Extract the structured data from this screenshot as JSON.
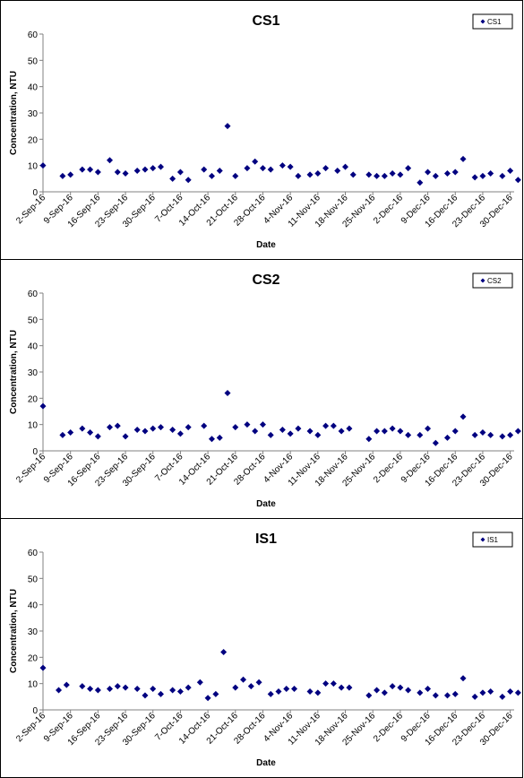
{
  "chart_data": [
    {
      "type": "scatter",
      "title": "CS1",
      "xlabel": "Date",
      "ylabel": "Concentration, NTU",
      "ylim": [
        0,
        60
      ],
      "yticks": [
        "0",
        "10",
        "20",
        "30",
        "40",
        "50",
        "60"
      ],
      "xlim": [
        "2016-09-02",
        "2016-12-31"
      ],
      "xticks": [
        "2-Sep-16",
        "9-Sep-16",
        "16-Sep-16",
        "23-Sep-16",
        "30-Sep-16",
        "7-Oct-16",
        "14-Oct-16",
        "21-Oct-16",
        "28-Oct-16",
        "4-Nov-16",
        "11-Nov-16",
        "18-Nov-16",
        "25-Nov-16",
        "2-Dec-16",
        "9-Dec-16",
        "16-Dec-16",
        "23-Dec-16",
        "30-Dec-16"
      ],
      "legend_position": "top-right",
      "series": [
        {
          "name": "CS1",
          "color": "#000080",
          "marker": "diamond",
          "points": [
            {
              "x": "2016-09-02",
              "y": 10
            },
            {
              "x": "2016-09-07",
              "y": 6
            },
            {
              "x": "2016-09-09",
              "y": 6.5
            },
            {
              "x": "2016-09-12",
              "y": 8.5
            },
            {
              "x": "2016-09-14",
              "y": 8.5
            },
            {
              "x": "2016-09-16",
              "y": 7.5
            },
            {
              "x": "2016-09-19",
              "y": 12
            },
            {
              "x": "2016-09-21",
              "y": 7.5
            },
            {
              "x": "2016-09-23",
              "y": 7
            },
            {
              "x": "2016-09-26",
              "y": 8
            },
            {
              "x": "2016-09-28",
              "y": 8.5
            },
            {
              "x": "2016-09-30",
              "y": 9
            },
            {
              "x": "2016-10-02",
              "y": 9.5
            },
            {
              "x": "2016-10-05",
              "y": 5
            },
            {
              "x": "2016-10-07",
              "y": 7.5
            },
            {
              "x": "2016-10-09",
              "y": 4.5
            },
            {
              "x": "2016-10-13",
              "y": 8.5
            },
            {
              "x": "2016-10-15",
              "y": 6
            },
            {
              "x": "2016-10-17",
              "y": 8
            },
            {
              "x": "2016-10-19",
              "y": 25
            },
            {
              "x": "2016-10-21",
              "y": 6
            },
            {
              "x": "2016-10-24",
              "y": 9
            },
            {
              "x": "2016-10-26",
              "y": 11.5
            },
            {
              "x": "2016-10-28",
              "y": 9
            },
            {
              "x": "2016-10-30",
              "y": 8.5
            },
            {
              "x": "2016-11-02",
              "y": 10
            },
            {
              "x": "2016-11-04",
              "y": 9.5
            },
            {
              "x": "2016-11-06",
              "y": 6
            },
            {
              "x": "2016-11-09",
              "y": 6.5
            },
            {
              "x": "2016-11-11",
              "y": 7
            },
            {
              "x": "2016-11-13",
              "y": 9
            },
            {
              "x": "2016-11-16",
              "y": 8
            },
            {
              "x": "2016-11-18",
              "y": 9.5
            },
            {
              "x": "2016-11-20",
              "y": 6.5
            },
            {
              "x": "2016-11-24",
              "y": 6.5
            },
            {
              "x": "2016-11-26",
              "y": 6
            },
            {
              "x": "2016-11-28",
              "y": 6
            },
            {
              "x": "2016-11-30",
              "y": 7
            },
            {
              "x": "2016-12-02",
              "y": 6.5
            },
            {
              "x": "2016-12-04",
              "y": 9
            },
            {
              "x": "2016-12-07",
              "y": 3.5
            },
            {
              "x": "2016-12-09",
              "y": 7.5
            },
            {
              "x": "2016-12-11",
              "y": 6
            },
            {
              "x": "2016-12-14",
              "y": 7
            },
            {
              "x": "2016-12-16",
              "y": 7.5
            },
            {
              "x": "2016-12-18",
              "y": 12.5
            },
            {
              "x": "2016-12-21",
              "y": 5.5
            },
            {
              "x": "2016-12-23",
              "y": 6
            },
            {
              "x": "2016-12-25",
              "y": 7
            },
            {
              "x": "2016-12-28",
              "y": 6
            },
            {
              "x": "2016-12-30",
              "y": 8
            },
            {
              "x": "2017-01-01",
              "y": 4.5
            }
          ]
        }
      ]
    },
    {
      "type": "scatter",
      "title": "CS2",
      "xlabel": "Date",
      "ylabel": "Concentration, NTU",
      "ylim": [
        0,
        60
      ],
      "yticks": [
        "0",
        "10",
        "20",
        "30",
        "40",
        "50",
        "60"
      ],
      "xlim": [
        "2016-09-02",
        "2016-12-31"
      ],
      "xticks": [
        "2-Sep-16",
        "9-Sep-16",
        "16-Sep-16",
        "23-Sep-16",
        "30-Sep-16",
        "7-Oct-16",
        "14-Oct-16",
        "21-Oct-16",
        "28-Oct-16",
        "4-Nov-16",
        "11-Nov-16",
        "18-Nov-16",
        "25-Nov-16",
        "2-Dec-16",
        "9-Dec-16",
        "16-Dec-16",
        "23-Dec-16",
        "30-Dec-16"
      ],
      "legend_position": "top-right",
      "series": [
        {
          "name": "CS2",
          "color": "#000080",
          "marker": "diamond",
          "points": [
            {
              "x": "2016-09-02",
              "y": 17
            },
            {
              "x": "2016-09-07",
              "y": 6
            },
            {
              "x": "2016-09-09",
              "y": 7
            },
            {
              "x": "2016-09-12",
              "y": 8.5
            },
            {
              "x": "2016-09-14",
              "y": 7
            },
            {
              "x": "2016-09-16",
              "y": 5.5
            },
            {
              "x": "2016-09-19",
              "y": 9
            },
            {
              "x": "2016-09-21",
              "y": 9.5
            },
            {
              "x": "2016-09-23",
              "y": 5.5
            },
            {
              "x": "2016-09-26",
              "y": 8
            },
            {
              "x": "2016-09-28",
              "y": 7.5
            },
            {
              "x": "2016-09-30",
              "y": 8.5
            },
            {
              "x": "2016-10-02",
              "y": 9
            },
            {
              "x": "2016-10-05",
              "y": 8
            },
            {
              "x": "2016-10-07",
              "y": 6.5
            },
            {
              "x": "2016-10-09",
              "y": 9
            },
            {
              "x": "2016-10-13",
              "y": 9.5
            },
            {
              "x": "2016-10-15",
              "y": 4.5
            },
            {
              "x": "2016-10-17",
              "y": 5
            },
            {
              "x": "2016-10-19",
              "y": 22
            },
            {
              "x": "2016-10-21",
              "y": 9
            },
            {
              "x": "2016-10-24",
              "y": 10
            },
            {
              "x": "2016-10-26",
              "y": 7.5
            },
            {
              "x": "2016-10-28",
              "y": 10
            },
            {
              "x": "2016-10-30",
              "y": 6
            },
            {
              "x": "2016-11-02",
              "y": 8
            },
            {
              "x": "2016-11-04",
              "y": 6.5
            },
            {
              "x": "2016-11-06",
              "y": 8.5
            },
            {
              "x": "2016-11-09",
              "y": 7.5
            },
            {
              "x": "2016-11-11",
              "y": 6
            },
            {
              "x": "2016-11-13",
              "y": 9.5
            },
            {
              "x": "2016-11-15",
              "y": 9.5
            },
            {
              "x": "2016-11-17",
              "y": 7.5
            },
            {
              "x": "2016-11-19",
              "y": 8.5
            },
            {
              "x": "2016-11-24",
              "y": 4.5
            },
            {
              "x": "2016-11-26",
              "y": 7.5
            },
            {
              "x": "2016-11-28",
              "y": 7.5
            },
            {
              "x": "2016-11-30",
              "y": 8.5
            },
            {
              "x": "2016-12-02",
              "y": 7.5
            },
            {
              "x": "2016-12-04",
              "y": 6
            },
            {
              "x": "2016-12-07",
              "y": 6
            },
            {
              "x": "2016-12-09",
              "y": 8.5
            },
            {
              "x": "2016-12-11",
              "y": 3
            },
            {
              "x": "2016-12-14",
              "y": 5
            },
            {
              "x": "2016-12-16",
              "y": 7.5
            },
            {
              "x": "2016-12-18",
              "y": 13
            },
            {
              "x": "2016-12-21",
              "y": 6
            },
            {
              "x": "2016-12-23",
              "y": 7
            },
            {
              "x": "2016-12-25",
              "y": 6
            },
            {
              "x": "2016-12-28",
              "y": 5.5
            },
            {
              "x": "2016-12-30",
              "y": 6
            },
            {
              "x": "2017-01-01",
              "y": 7.5
            }
          ]
        }
      ]
    },
    {
      "type": "scatter",
      "title": "IS1",
      "xlabel": "Date",
      "ylabel": "Concentration, NTU",
      "ylim": [
        0,
        60
      ],
      "yticks": [
        "0",
        "10",
        "20",
        "30",
        "40",
        "50",
        "60"
      ],
      "xlim": [
        "2016-09-02",
        "2016-12-31"
      ],
      "xticks": [
        "2-Sep-16",
        "9-Sep-16",
        "16-Sep-16",
        "23-Sep-16",
        "30-Sep-16",
        "7-Oct-16",
        "14-Oct-16",
        "21-Oct-16",
        "28-Oct-16",
        "4-Nov-16",
        "11-Nov-16",
        "18-Nov-16",
        "25-Nov-16",
        "2-Dec-16",
        "9-Dec-16",
        "16-Dec-16",
        "23-Dec-16",
        "30-Dec-16"
      ],
      "legend_position": "top-right",
      "series": [
        {
          "name": "IS1",
          "color": "#000080",
          "marker": "diamond",
          "points": [
            {
              "x": "2016-09-02",
              "y": 16
            },
            {
              "x": "2016-09-06",
              "y": 7.5
            },
            {
              "x": "2016-09-08",
              "y": 9.5
            },
            {
              "x": "2016-09-12",
              "y": 9
            },
            {
              "x": "2016-09-14",
              "y": 8
            },
            {
              "x": "2016-09-16",
              "y": 7.5
            },
            {
              "x": "2016-09-19",
              "y": 8
            },
            {
              "x": "2016-09-21",
              "y": 9
            },
            {
              "x": "2016-09-23",
              "y": 8.5
            },
            {
              "x": "2016-09-26",
              "y": 8
            },
            {
              "x": "2016-09-28",
              "y": 5.5
            },
            {
              "x": "2016-09-30",
              "y": 8
            },
            {
              "x": "2016-10-02",
              "y": 6
            },
            {
              "x": "2016-10-05",
              "y": 7.5
            },
            {
              "x": "2016-10-07",
              "y": 7
            },
            {
              "x": "2016-10-09",
              "y": 8.5
            },
            {
              "x": "2016-10-12",
              "y": 10.5
            },
            {
              "x": "2016-10-14",
              "y": 4.5
            },
            {
              "x": "2016-10-16",
              "y": 6
            },
            {
              "x": "2016-10-18",
              "y": 22
            },
            {
              "x": "2016-10-21",
              "y": 8.5
            },
            {
              "x": "2016-10-23",
              "y": 11.5
            },
            {
              "x": "2016-10-25",
              "y": 9
            },
            {
              "x": "2016-10-27",
              "y": 10.5
            },
            {
              "x": "2016-10-30",
              "y": 6
            },
            {
              "x": "2016-11-01",
              "y": 7
            },
            {
              "x": "2016-11-03",
              "y": 8
            },
            {
              "x": "2016-11-05",
              "y": 8
            },
            {
              "x": "2016-11-09",
              "y": 7
            },
            {
              "x": "2016-11-11",
              "y": 6.5
            },
            {
              "x": "2016-11-13",
              "y": 10
            },
            {
              "x": "2016-11-15",
              "y": 10
            },
            {
              "x": "2016-11-17",
              "y": 8.5
            },
            {
              "x": "2016-11-19",
              "y": 8.5
            },
            {
              "x": "2016-11-24",
              "y": 5.5
            },
            {
              "x": "2016-11-26",
              "y": 7.5
            },
            {
              "x": "2016-11-28",
              "y": 6.5
            },
            {
              "x": "2016-11-30",
              "y": 9
            },
            {
              "x": "2016-12-02",
              "y": 8.5
            },
            {
              "x": "2016-12-04",
              "y": 7.5
            },
            {
              "x": "2016-12-07",
              "y": 6.5
            },
            {
              "x": "2016-12-09",
              "y": 8
            },
            {
              "x": "2016-12-11",
              "y": 5.5
            },
            {
              "x": "2016-12-14",
              "y": 5.5
            },
            {
              "x": "2016-12-16",
              "y": 6
            },
            {
              "x": "2016-12-18",
              "y": 12
            },
            {
              "x": "2016-12-21",
              "y": 5
            },
            {
              "x": "2016-12-23",
              "y": 6.5
            },
            {
              "x": "2016-12-25",
              "y": 7
            },
            {
              "x": "2016-12-28",
              "y": 5
            },
            {
              "x": "2016-12-30",
              "y": 7
            },
            {
              "x": "2017-01-01",
              "y": 6.5
            }
          ]
        }
      ]
    }
  ]
}
